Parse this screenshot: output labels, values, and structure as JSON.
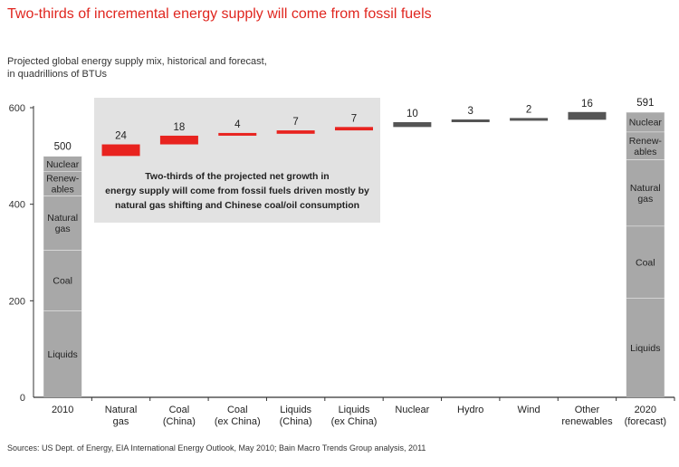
{
  "title": "Two-thirds of incremental energy supply will come from fossil fuels",
  "subtitle": {
    "line1": "Projected global energy supply mix, historical and forecast,",
    "line2": "in quadrillions of BTUs"
  },
  "source": "Sources: US Dept. of Energy, EIA International Energy Outlook, May 2010; Bain Macro Trends Group analysis, 2011",
  "colors": {
    "fossil": "#e8231f",
    "nonfossil": "#555555",
    "stack": "#a8a8a8",
    "callout_bg": "#e2e2e2",
    "title": "#e0261f"
  },
  "callout": {
    "line1": "Two-thirds of the projected net growth in",
    "line2": "energy supply will come from fossil fuels driven mostly by",
    "line3": "natural gas shifting and Chinese coal/oil consumption"
  },
  "chart_data": {
    "type": "waterfall",
    "ylim": [
      0,
      600
    ],
    "yticks": [
      0,
      200,
      400,
      600
    ],
    "ytick_labels": [
      "0",
      "200",
      "400",
      "600"
    ],
    "start": {
      "label": "2010",
      "total_label": "500",
      "segments": [
        {
          "name": "Liquids",
          "label": [
            "Liquids"
          ],
          "value": 180
        },
        {
          "name": "Coal",
          "label": [
            "Coal"
          ],
          "value": 125
        },
        {
          "name": "Natural gas",
          "label": [
            "Natural",
            "gas"
          ],
          "value": 113
        },
        {
          "name": "Renewables",
          "label": [
            "Renew-",
            "ables"
          ],
          "value": 50
        },
        {
          "name": "Nuclear",
          "label": [
            "Nuclear"
          ],
          "value": 32
        }
      ]
    },
    "increments": [
      {
        "label": [
          "Natural",
          "gas"
        ],
        "value": 24,
        "value_label": "24",
        "kind": "fossil"
      },
      {
        "label": [
          "Coal",
          "(China)"
        ],
        "value": 18,
        "value_label": "18",
        "kind": "fossil"
      },
      {
        "label": [
          "Coal",
          "(ex China)"
        ],
        "value": 4,
        "value_label": "4",
        "kind": "fossil"
      },
      {
        "label": [
          "Liquids",
          "(China)"
        ],
        "value": 7,
        "value_label": "7",
        "kind": "fossil"
      },
      {
        "label": [
          "Liquids",
          "(ex China)"
        ],
        "value": 7,
        "value_label": "7",
        "kind": "fossil"
      },
      {
        "label": [
          "Nuclear"
        ],
        "value": 10,
        "value_label": "10",
        "kind": "nonfossil"
      },
      {
        "label": [
          "Hydro"
        ],
        "value": 3,
        "value_label": "3",
        "kind": "nonfossil"
      },
      {
        "label": [
          "Wind"
        ],
        "value": 2,
        "value_label": "2",
        "kind": "nonfossil"
      },
      {
        "label": [
          "Other",
          "renewables"
        ],
        "value": 16,
        "value_label": "16",
        "kind": "nonfossil"
      }
    ],
    "end": {
      "label": [
        "2020",
        "(forecast)"
      ],
      "total_label": "591",
      "segments": [
        {
          "name": "Liquids",
          "label": [
            "Liquids"
          ],
          "value": 206
        },
        {
          "name": "Coal",
          "label": [
            "Coal"
          ],
          "value": 149
        },
        {
          "name": "Natural gas",
          "label": [
            "Natural",
            "gas"
          ],
          "value": 138
        },
        {
          "name": "Renewables",
          "label": [
            "Renew-",
            "ables"
          ],
          "value": 57
        },
        {
          "name": "Nuclear",
          "label": [
            "Nuclear"
          ],
          "value": 41
        }
      ]
    }
  }
}
